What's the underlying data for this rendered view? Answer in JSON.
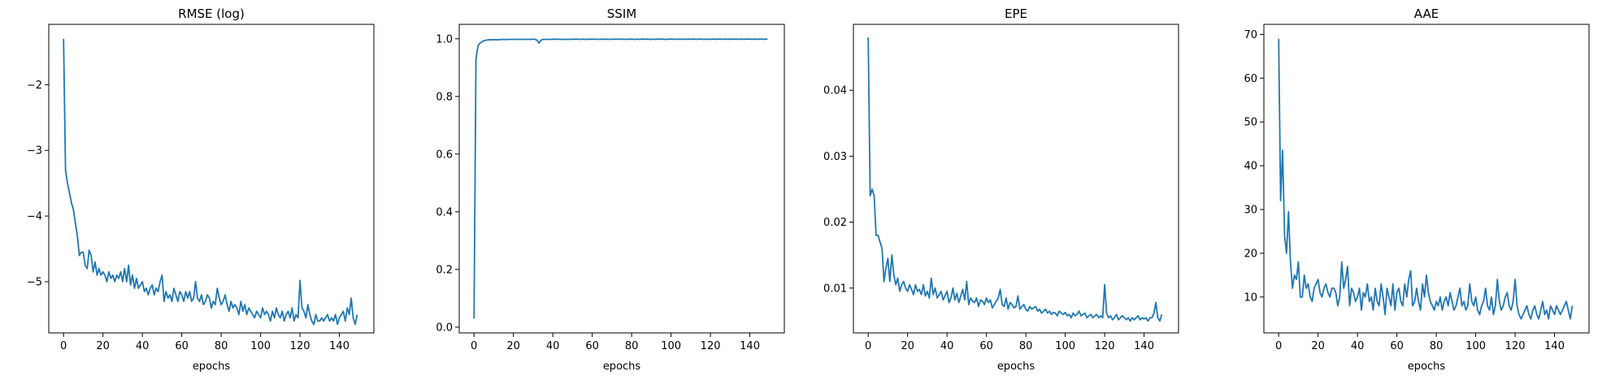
{
  "chart_data": [
    {
      "type": "line",
      "title": "RMSE (log)",
      "xlabel": "epochs",
      "ylabel": "",
      "xlim": [
        -7.5,
        157.5
      ],
      "ylim": [
        -5.78,
        -1.08
      ],
      "xticks": [
        0,
        20,
        40,
        60,
        80,
        100,
        120,
        140
      ],
      "yticks": [
        -5,
        -4,
        -3,
        -2
      ],
      "ytick_labels": [
        "−5",
        "−4",
        "−3",
        "−2"
      ],
      "color": "#1f77b4",
      "x": [
        0,
        1,
        2,
        3,
        4,
        5,
        6,
        7,
        8,
        9,
        10,
        11,
        12,
        13,
        14,
        15,
        16,
        17,
        18,
        19,
        20,
        21,
        22,
        23,
        24,
        25,
        26,
        27,
        28,
        29,
        30,
        31,
        32,
        33,
        34,
        35,
        36,
        37,
        38,
        39,
        40,
        41,
        42,
        43,
        44,
        45,
        46,
        47,
        48,
        49,
        50,
        51,
        52,
        53,
        54,
        55,
        56,
        57,
        58,
        59,
        60,
        61,
        62,
        63,
        64,
        65,
        66,
        67,
        68,
        69,
        70,
        71,
        72,
        73,
        74,
        75,
        76,
        77,
        78,
        79,
        80,
        81,
        82,
        83,
        84,
        85,
        86,
        87,
        88,
        89,
        90,
        91,
        92,
        93,
        94,
        95,
        96,
        97,
        98,
        99,
        100,
        101,
        102,
        103,
        104,
        105,
        106,
        107,
        108,
        109,
        110,
        111,
        112,
        113,
        114,
        115,
        116,
        117,
        118,
        119,
        120,
        121,
        122,
        123,
        124,
        125,
        126,
        127,
        128,
        129,
        130,
        131,
        132,
        133,
        134,
        135,
        136,
        137,
        138,
        139,
        140,
        141,
        142,
        143,
        144,
        145,
        146,
        147,
        148,
        149
      ],
      "y": [
        -1.3,
        -3.3,
        -3.5,
        -3.65,
        -3.8,
        -3.9,
        -4.1,
        -4.3,
        -4.6,
        -4.55,
        -4.55,
        -4.75,
        -4.8,
        -4.52,
        -4.6,
        -4.85,
        -4.7,
        -4.9,
        -4.8,
        -4.9,
        -4.85,
        -4.9,
        -5.0,
        -4.85,
        -4.95,
        -4.9,
        -5.0,
        -4.9,
        -4.95,
        -4.85,
        -5.0,
        -4.8,
        -5.0,
        -4.75,
        -5.05,
        -4.9,
        -5.1,
        -4.95,
        -5.1,
        -5.05,
        -5.0,
        -5.15,
        -5.1,
        -5.2,
        -5.1,
        -5.05,
        -5.2,
        -5.1,
        -5.15,
        -5.0,
        -4.9,
        -5.3,
        -5.15,
        -5.25,
        -5.2,
        -5.3,
        -5.1,
        -5.2,
        -5.3,
        -5.15,
        -5.2,
        -5.3,
        -5.15,
        -5.25,
        -5.15,
        -5.3,
        -5.25,
        -5.0,
        -5.25,
        -5.3,
        -5.2,
        -5.35,
        -5.3,
        -5.2,
        -5.25,
        -5.4,
        -5.3,
        -5.35,
        -5.1,
        -5.25,
        -5.35,
        -5.3,
        -5.2,
        -5.35,
        -5.45,
        -5.3,
        -5.4,
        -5.35,
        -5.4,
        -5.5,
        -5.3,
        -5.45,
        -5.35,
        -5.5,
        -5.4,
        -5.45,
        -5.5,
        -5.55,
        -5.45,
        -5.5,
        -5.55,
        -5.4,
        -5.5,
        -5.45,
        -5.5,
        -5.6,
        -5.45,
        -5.55,
        -5.4,
        -5.5,
        -5.55,
        -5.45,
        -5.6,
        -5.5,
        -5.45,
        -5.55,
        -5.4,
        -5.6,
        -5.5,
        -5.55,
        -4.98,
        -5.4,
        -5.45,
        -5.55,
        -5.35,
        -5.5,
        -5.6,
        -5.65,
        -5.5,
        -5.6,
        -5.6,
        -5.55,
        -5.6,
        -5.55,
        -5.5,
        -5.6,
        -5.55,
        -5.6,
        -5.5,
        -5.65,
        -5.55,
        -5.5,
        -5.45,
        -5.6,
        -5.4,
        -5.5,
        -5.25,
        -5.55,
        -5.65,
        -5.5
      ]
    },
    {
      "type": "line",
      "title": "SSIM",
      "xlabel": "epochs",
      "ylabel": "",
      "xlim": [
        -7.5,
        157.5
      ],
      "ylim": [
        -0.02,
        1.05
      ],
      "xticks": [
        0,
        20,
        40,
        60,
        80,
        100,
        120,
        140
      ],
      "yticks": [
        0.0,
        0.2,
        0.4,
        0.6,
        0.8,
        1.0
      ],
      "ytick_labels": [
        "0.0",
        "0.2",
        "0.4",
        "0.6",
        "0.8",
        "1.0"
      ],
      "color": "#1f77b4",
      "x": [
        0,
        1,
        2,
        3,
        4,
        5,
        6,
        7,
        8,
        9,
        10,
        11,
        12,
        13,
        14,
        15,
        16,
        17,
        18,
        19,
        20,
        21,
        22,
        23,
        24,
        25,
        26,
        27,
        28,
        29,
        30,
        31,
        32,
        33,
        34,
        35,
        36,
        37,
        38,
        39,
        40,
        41,
        42,
        43,
        44,
        45,
        46,
        47,
        48,
        49,
        50,
        51,
        52,
        53,
        54,
        55,
        56,
        57,
        58,
        59,
        60,
        61,
        62,
        63,
        64,
        65,
        66,
        67,
        68,
        69,
        70,
        71,
        72,
        73,
        74,
        75,
        76,
        77,
        78,
        79,
        80,
        81,
        82,
        83,
        84,
        85,
        86,
        87,
        88,
        89,
        90,
        91,
        92,
        93,
        94,
        95,
        96,
        97,
        98,
        99,
        100,
        101,
        102,
        103,
        104,
        105,
        106,
        107,
        108,
        109,
        110,
        111,
        112,
        113,
        114,
        115,
        116,
        117,
        118,
        119,
        120,
        121,
        122,
        123,
        124,
        125,
        126,
        127,
        128,
        129,
        130,
        131,
        132,
        133,
        134,
        135,
        136,
        137,
        138,
        139,
        140,
        141,
        142,
        143,
        144,
        145,
        146,
        147,
        148,
        149
      ],
      "y": [
        0.03,
        0.93,
        0.975,
        0.985,
        0.99,
        0.993,
        0.995,
        0.996,
        0.997,
        0.996,
        0.997,
        0.997,
        0.996,
        0.998,
        0.997,
        0.998,
        0.997,
        0.998,
        0.998,
        0.998,
        0.998,
        0.998,
        0.998,
        0.998,
        0.998,
        0.998,
        0.998,
        0.998,
        0.998,
        0.998,
        0.999,
        0.998,
        0.995,
        0.985,
        0.995,
        0.998,
        0.998,
        0.998,
        0.998,
        0.998,
        0.999,
        0.998,
        0.999,
        0.998,
        0.998,
        0.998,
        0.998,
        0.998,
        0.998,
        0.998,
        0.999,
        0.998,
        0.999,
        0.998,
        0.998,
        0.999,
        0.998,
        0.998,
        0.999,
        0.998,
        0.999,
        0.998,
        0.999,
        0.998,
        0.998,
        0.999,
        0.998,
        0.999,
        0.998,
        0.998,
        0.999,
        0.998,
        0.999,
        0.999,
        0.998,
        0.999,
        0.998,
        0.998,
        0.999,
        0.998,
        0.999,
        0.998,
        0.998,
        0.999,
        0.998,
        0.999,
        0.999,
        0.998,
        0.999,
        0.998,
        0.998,
        0.999,
        0.998,
        0.999,
        0.999,
        0.998,
        0.999,
        0.998,
        0.998,
        0.999,
        0.999,
        0.998,
        0.999,
        0.998,
        0.999,
        0.999,
        0.998,
        0.999,
        0.998,
        0.999,
        0.998,
        0.999,
        0.999,
        0.998,
        0.999,
        0.999,
        0.998,
        0.999,
        0.998,
        0.999,
        0.998,
        0.999,
        0.999,
        0.998,
        0.999,
        0.999,
        0.998,
        0.999,
        0.999,
        0.998,
        0.999,
        0.998,
        0.999,
        0.999,
        0.998,
        0.999,
        0.999,
        0.998,
        0.999,
        0.999,
        0.999,
        0.998,
        0.999,
        0.999,
        0.998,
        0.999,
        0.999,
        0.998,
        0.999,
        0.999
      ]
    },
    {
      "type": "line",
      "title": "EPE",
      "xlabel": "epochs",
      "ylabel": "",
      "xlim": [
        -7.5,
        157.5
      ],
      "ylim": [
        0.0032,
        0.05
      ],
      "xticks": [
        0,
        20,
        40,
        60,
        80,
        100,
        120,
        140
      ],
      "yticks": [
        0.01,
        0.02,
        0.03,
        0.04
      ],
      "ytick_labels": [
        "0.01",
        "0.02",
        "0.03",
        "0.04"
      ],
      "color": "#1f77b4",
      "x": [
        0,
        1,
        2,
        3,
        4,
        5,
        6,
        7,
        8,
        9,
        10,
        11,
        12,
        13,
        14,
        15,
        16,
        17,
        18,
        19,
        20,
        21,
        22,
        23,
        24,
        25,
        26,
        27,
        28,
        29,
        30,
        31,
        32,
        33,
        34,
        35,
        36,
        37,
        38,
        39,
        40,
        41,
        42,
        43,
        44,
        45,
        46,
        47,
        48,
        49,
        50,
        51,
        52,
        53,
        54,
        55,
        56,
        57,
        58,
        59,
        60,
        61,
        62,
        63,
        64,
        65,
        66,
        67,
        68,
        69,
        70,
        71,
        72,
        73,
        74,
        75,
        76,
        77,
        78,
        79,
        80,
        81,
        82,
        83,
        84,
        85,
        86,
        87,
        88,
        89,
        90,
        91,
        92,
        93,
        94,
        95,
        96,
        97,
        98,
        99,
        100,
        101,
        102,
        103,
        104,
        105,
        106,
        107,
        108,
        109,
        110,
        111,
        112,
        113,
        114,
        115,
        116,
        117,
        118,
        119,
        120,
        121,
        122,
        123,
        124,
        125,
        126,
        127,
        128,
        129,
        130,
        131,
        132,
        133,
        134,
        135,
        136,
        137,
        138,
        139,
        140,
        141,
        142,
        143,
        144,
        145,
        146,
        147,
        148,
        149
      ],
      "y": [
        0.048,
        0.024,
        0.025,
        0.024,
        0.018,
        0.018,
        0.017,
        0.016,
        0.011,
        0.013,
        0.0145,
        0.011,
        0.015,
        0.012,
        0.0105,
        0.0115,
        0.0095,
        0.0105,
        0.011,
        0.01,
        0.0095,
        0.0105,
        0.0098,
        0.009,
        0.0105,
        0.0095,
        0.0098,
        0.009,
        0.0105,
        0.0088,
        0.0095,
        0.0085,
        0.0115,
        0.009,
        0.01,
        0.0085,
        0.009,
        0.0095,
        0.0082,
        0.0088,
        0.0095,
        0.0078,
        0.0085,
        0.01,
        0.0082,
        0.0092,
        0.0078,
        0.0088,
        0.0098,
        0.0082,
        0.011,
        0.0075,
        0.0085,
        0.008,
        0.0078,
        0.0085,
        0.0072,
        0.0082,
        0.008,
        0.0075,
        0.0085,
        0.0078,
        0.0082,
        0.007,
        0.0075,
        0.008,
        0.0085,
        0.0098,
        0.0075,
        0.0072,
        0.0085,
        0.0068,
        0.0078,
        0.0075,
        0.007,
        0.0072,
        0.0088,
        0.0068,
        0.0072,
        0.0075,
        0.0068,
        0.0065,
        0.0072,
        0.0068,
        0.007,
        0.0072,
        0.0065,
        0.0068,
        0.0062,
        0.0065,
        0.0068,
        0.0062,
        0.0065,
        0.006,
        0.0063,
        0.0062,
        0.0058,
        0.0065,
        0.0062,
        0.006,
        0.0063,
        0.0058,
        0.006,
        0.0055,
        0.0062,
        0.0058,
        0.006,
        0.0065,
        0.0058,
        0.006,
        0.0062,
        0.0055,
        0.0058,
        0.006,
        0.0055,
        0.0058,
        0.006,
        0.0055,
        0.0058,
        0.0055,
        0.0105,
        0.0062,
        0.0055,
        0.0058,
        0.0052,
        0.0055,
        0.006,
        0.0052,
        0.0055,
        0.0058,
        0.0055,
        0.0052,
        0.0055,
        0.005,
        0.0055,
        0.0052,
        0.0055,
        0.0058,
        0.0052,
        0.0055,
        0.0053,
        0.0055,
        0.005,
        0.0055,
        0.0055,
        0.0062,
        0.0078,
        0.0055,
        0.005,
        0.006
      ]
    },
    {
      "type": "line",
      "title": "AAE",
      "xlabel": "epochs",
      "ylabel": "",
      "xlim": [
        -7.5,
        157.5
      ],
      "ylim": [
        1.8,
        72.3
      ],
      "xticks": [
        0,
        20,
        40,
        60,
        80,
        100,
        120,
        140
      ],
      "yticks": [
        10,
        20,
        30,
        40,
        50,
        60,
        70
      ],
      "ytick_labels": [
        "10",
        "20",
        "30",
        "40",
        "50",
        "60",
        "70"
      ],
      "color": "#1f77b4",
      "x": [
        0,
        1,
        2,
        3,
        4,
        5,
        6,
        7,
        8,
        9,
        10,
        11,
        12,
        13,
        14,
        15,
        16,
        17,
        18,
        19,
        20,
        21,
        22,
        23,
        24,
        25,
        26,
        27,
        28,
        29,
        30,
        31,
        32,
        33,
        34,
        35,
        36,
        37,
        38,
        39,
        40,
        41,
        42,
        43,
        44,
        45,
        46,
        47,
        48,
        49,
        50,
        51,
        52,
        53,
        54,
        55,
        56,
        57,
        58,
        59,
        60,
        61,
        62,
        63,
        64,
        65,
        66,
        67,
        68,
        69,
        70,
        71,
        72,
        73,
        74,
        75,
        76,
        77,
        78,
        79,
        80,
        81,
        82,
        83,
        84,
        85,
        86,
        87,
        88,
        89,
        90,
        91,
        92,
        93,
        94,
        95,
        96,
        97,
        98,
        99,
        100,
        101,
        102,
        103,
        104,
        105,
        106,
        107,
        108,
        109,
        110,
        111,
        112,
        113,
        114,
        115,
        116,
        117,
        118,
        119,
        120,
        121,
        122,
        123,
        124,
        125,
        126,
        127,
        128,
        129,
        130,
        131,
        132,
        133,
        134,
        135,
        136,
        137,
        138,
        139,
        140,
        141,
        142,
        143,
        144,
        145,
        146,
        147,
        148,
        149
      ],
      "y": [
        69,
        32,
        43.5,
        24,
        20,
        29.5,
        18,
        12,
        15,
        14,
        18,
        10,
        10,
        15,
        12,
        13,
        10,
        9,
        12,
        13,
        14,
        11,
        10,
        12,
        13,
        11,
        10,
        12,
        12,
        11,
        8,
        10,
        18,
        12,
        14,
        17,
        8,
        12,
        11,
        9,
        10,
        12,
        7,
        11,
        10,
        13,
        9,
        10,
        7,
        12,
        9,
        8,
        13,
        10,
        6,
        12,
        10,
        8,
        13,
        7,
        11,
        12,
        9,
        8,
        13,
        10,
        14,
        16,
        8,
        9,
        12,
        9,
        7,
        13,
        10,
        15,
        11,
        9,
        8,
        7,
        9,
        8,
        10,
        7,
        9,
        10,
        8,
        11,
        9,
        7,
        8,
        10,
        12,
        8,
        9,
        7,
        8,
        13,
        9,
        8,
        10,
        7,
        6,
        8,
        9,
        12,
        8,
        7,
        10,
        6,
        8,
        14,
        9,
        7,
        8,
        10,
        11,
        8,
        7,
        9,
        14,
        8,
        6,
        5,
        6,
        7,
        8,
        6,
        5,
        7,
        8,
        6,
        5,
        7,
        9,
        6,
        7,
        5,
        8,
        7,
        6,
        8,
        7,
        6,
        7,
        8,
        9,
        7,
        5,
        8
      ]
    }
  ]
}
